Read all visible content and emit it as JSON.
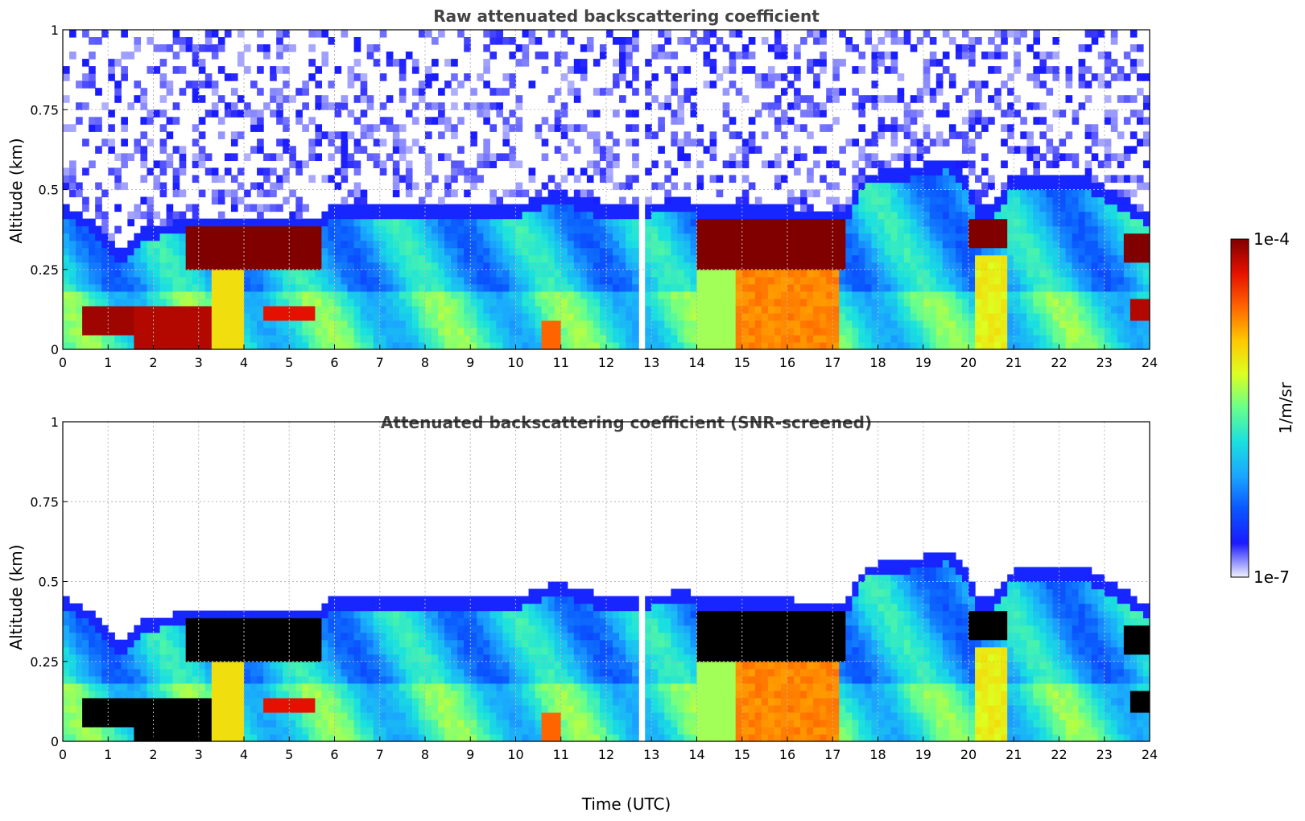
{
  "colors": {
    "colormap": [
      "#f2f2ff",
      "#1a1aff",
      "#0a55ff",
      "#1aa6ff",
      "#1ae0e0",
      "#66ff8c",
      "#dcff22",
      "#ffc800",
      "#ff6400",
      "#e61000",
      "#800000"
    ],
    "saturated_screened": "#000000",
    "no_data": "#ffffff",
    "title_text": "#444444"
  },
  "colorbar": {
    "label": "1/m/sr",
    "top_label": "1e-4",
    "bottom_label": "1e-7",
    "scale": "log"
  },
  "shared_x_label": "Time (UTC)",
  "chart_data": [
    {
      "type": "heatmap",
      "title": "Raw attenuated backscattering coefficient",
      "xlabel": "",
      "ylabel": "Altitude (km)",
      "xlim": [
        0,
        24
      ],
      "ylim": [
        0,
        1
      ],
      "x_ticks": [
        "0",
        "1",
        "2",
        "3",
        "4",
        "5",
        "6",
        "7",
        "8",
        "9",
        "10",
        "11",
        "12",
        "13",
        "14",
        "15",
        "16",
        "17",
        "18",
        "19",
        "20",
        "21",
        "22",
        "23",
        "24"
      ],
      "y_ticks": [
        "0",
        "0.25",
        "0.5",
        "0.75",
        "1"
      ],
      "grid": true,
      "color_scale": "log",
      "value_range": [
        1e-07,
        0.0001
      ]
    },
    {
      "type": "heatmap",
      "title": "Attenuated backscattering coefficient (SNR-screened)",
      "xlabel": "Time (UTC)",
      "ylabel": "Altitude (km)",
      "xlim": [
        0,
        24
      ],
      "ylim": [
        0,
        1
      ],
      "x_ticks": [
        "0",
        "1",
        "2",
        "3",
        "4",
        "5",
        "6",
        "7",
        "8",
        "9",
        "10",
        "11",
        "12",
        "13",
        "14",
        "15",
        "16",
        "17",
        "18",
        "19",
        "20",
        "21",
        "22",
        "23",
        "24"
      ],
      "y_ticks": [
        "0",
        "0.25",
        "0.5",
        "0.75",
        "1"
      ],
      "grid": true,
      "color_scale": "log",
      "value_range": [
        1e-07,
        0.0001
      ]
    }
  ]
}
